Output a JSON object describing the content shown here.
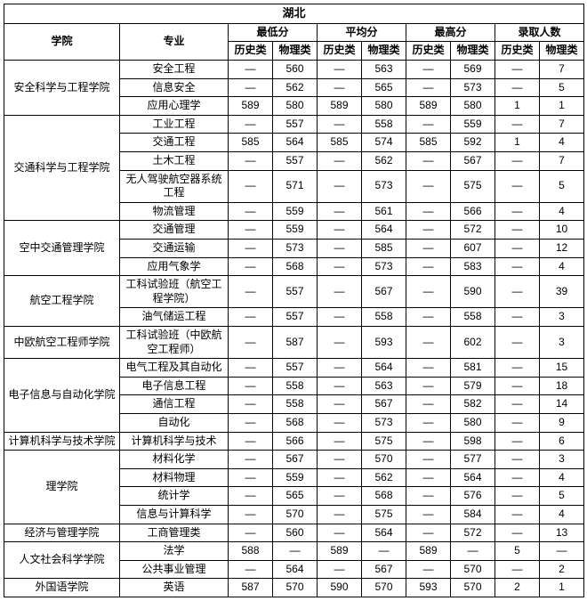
{
  "title": "湖北",
  "header": {
    "college": "学院",
    "major": "专业",
    "groups": [
      {
        "label": "最低分",
        "sub": [
          "历史类",
          "物理类"
        ]
      },
      {
        "label": "平均分",
        "sub": [
          "历史类",
          "物理类"
        ]
      },
      {
        "label": "最高分",
        "sub": [
          "历史类",
          "物理类"
        ]
      },
      {
        "label": "录取人数",
        "sub": [
          "历史类",
          "物理类"
        ]
      }
    ]
  },
  "dash": "—",
  "colleges": [
    {
      "name": "安全科学与工程学院",
      "majors": [
        {
          "name": "安全工程",
          "v": [
            "—",
            "560",
            "—",
            "563",
            "—",
            "569",
            "—",
            "7"
          ]
        },
        {
          "name": "信息安全",
          "v": [
            "—",
            "562",
            "—",
            "565",
            "—",
            "573",
            "—",
            "5"
          ]
        },
        {
          "name": "应用心理学",
          "v": [
            "589",
            "580",
            "589",
            "580",
            "589",
            "580",
            "1",
            "1"
          ]
        }
      ]
    },
    {
      "name": "交通科学与工程学院",
      "majors": [
        {
          "name": "工业工程",
          "v": [
            "—",
            "557",
            "—",
            "558",
            "—",
            "559",
            "—",
            "7"
          ]
        },
        {
          "name": "交通工程",
          "v": [
            "585",
            "564",
            "585",
            "574",
            "585",
            "592",
            "1",
            "4"
          ]
        },
        {
          "name": "土木工程",
          "v": [
            "—",
            "557",
            "—",
            "562",
            "—",
            "567",
            "—",
            "7"
          ]
        },
        {
          "name": "无人驾驶航空器系统工程",
          "v": [
            "—",
            "571",
            "—",
            "573",
            "—",
            "575",
            "—",
            "5"
          ]
        },
        {
          "name": "物流管理",
          "v": [
            "—",
            "559",
            "—",
            "561",
            "—",
            "566",
            "—",
            "4"
          ]
        }
      ]
    },
    {
      "name": "空中交通管理学院",
      "majors": [
        {
          "name": "交通管理",
          "v": [
            "—",
            "559",
            "—",
            "564",
            "—",
            "572",
            "—",
            "10"
          ]
        },
        {
          "name": "交通运输",
          "v": [
            "—",
            "573",
            "—",
            "585",
            "—",
            "607",
            "—",
            "12"
          ]
        },
        {
          "name": "应用气象学",
          "v": [
            "—",
            "568",
            "—",
            "573",
            "—",
            "583",
            "—",
            "4"
          ]
        }
      ]
    },
    {
      "name": "航空工程学院",
      "majors": [
        {
          "name": "工科试验班（航空工程学院）",
          "v": [
            "—",
            "557",
            "—",
            "567",
            "—",
            "590",
            "—",
            "39"
          ]
        },
        {
          "name": "油气储运工程",
          "v": [
            "—",
            "557",
            "—",
            "558",
            "—",
            "558",
            "—",
            "3"
          ]
        }
      ]
    },
    {
      "name": "中欧航空工程师学院",
      "majors": [
        {
          "name": "工科试验班（中欧航空工程师）",
          "v": [
            "—",
            "587",
            "—",
            "593",
            "—",
            "602",
            "—",
            "3"
          ]
        }
      ]
    },
    {
      "name": "电子信息与自动化学院",
      "majors": [
        {
          "name": "电气工程及其自动化",
          "v": [
            "—",
            "557",
            "—",
            "564",
            "—",
            "581",
            "—",
            "15"
          ]
        },
        {
          "name": "电子信息工程",
          "v": [
            "—",
            "558",
            "—",
            "563",
            "—",
            "579",
            "—",
            "18"
          ]
        },
        {
          "name": "通信工程",
          "v": [
            "—",
            "558",
            "—",
            "567",
            "—",
            "582",
            "—",
            "14"
          ]
        },
        {
          "name": "自动化",
          "v": [
            "—",
            "568",
            "—",
            "573",
            "—",
            "580",
            "—",
            "9"
          ]
        }
      ]
    },
    {
      "name": "计算机科学与技术学院",
      "majors": [
        {
          "name": "计算机科学与技术",
          "v": [
            "—",
            "566",
            "—",
            "575",
            "—",
            "598",
            "—",
            "6"
          ]
        }
      ]
    },
    {
      "name": "理学院",
      "majors": [
        {
          "name": "材料化学",
          "v": [
            "—",
            "567",
            "—",
            "570",
            "—",
            "577",
            "—",
            "3"
          ]
        },
        {
          "name": "材料物理",
          "v": [
            "—",
            "559",
            "—",
            "562",
            "—",
            "564",
            "—",
            "4"
          ]
        },
        {
          "name": "统计学",
          "v": [
            "—",
            "565",
            "—",
            "568",
            "—",
            "576",
            "—",
            "5"
          ]
        },
        {
          "name": "信息与计算科学",
          "v": [
            "—",
            "570",
            "—",
            "575",
            "—",
            "584",
            "—",
            "4"
          ]
        }
      ]
    },
    {
      "name": "经济与管理学院",
      "majors": [
        {
          "name": "工商管理类",
          "v": [
            "—",
            "560",
            "—",
            "564",
            "—",
            "572",
            "—",
            "13"
          ]
        }
      ]
    },
    {
      "name": "人文社会科学学院",
      "majors": [
        {
          "name": "法学",
          "v": [
            "588",
            "—",
            "589",
            "—",
            "589",
            "—",
            "5",
            "—"
          ]
        },
        {
          "name": "公共事业管理",
          "v": [
            "—",
            "564",
            "—",
            "567",
            "—",
            "570",
            "—",
            "2"
          ]
        }
      ]
    },
    {
      "name": "外国语学院",
      "majors": [
        {
          "name": "英语",
          "v": [
            "587",
            "570",
            "590",
            "570",
            "593",
            "570",
            "2",
            "1"
          ]
        }
      ]
    }
  ]
}
